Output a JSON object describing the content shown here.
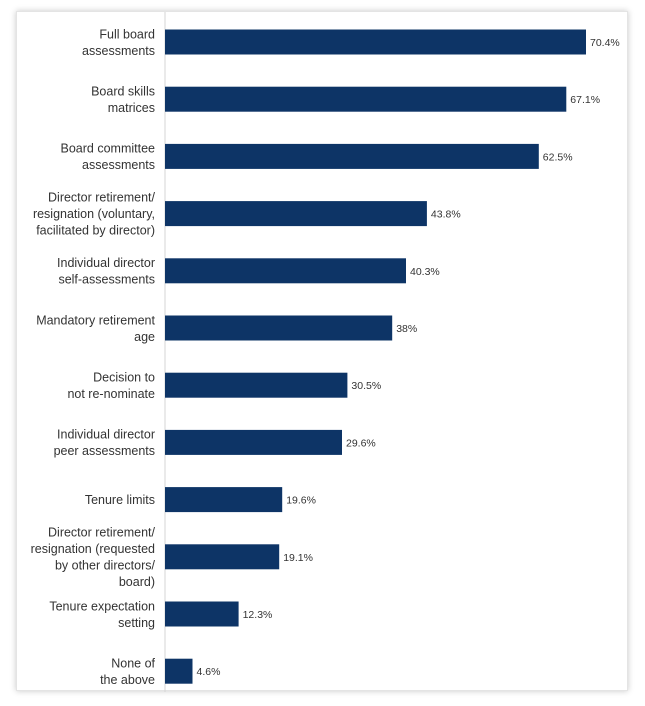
{
  "chart_data": {
    "type": "bar",
    "orientation": "horizontal",
    "title": "",
    "xlabel": "",
    "ylabel": "",
    "xlim": [
      0,
      72
    ],
    "grid": false,
    "legend": "none",
    "bar_color": "#0d3466",
    "categories": [
      [
        "Full board",
        "assessments"
      ],
      [
        "Board skills",
        "matrices"
      ],
      [
        "Board committee",
        "assessments"
      ],
      [
        "Director retirement/",
        "resignation (voluntary,",
        "facilitated by director)"
      ],
      [
        "Individual director",
        "self-assessments"
      ],
      [
        "Mandatory retirement",
        "age"
      ],
      [
        "Decision to",
        "not re-nominate"
      ],
      [
        "Individual director",
        "peer assessments"
      ],
      [
        "Tenure limits"
      ],
      [
        "Director retirement/",
        "resignation (requested",
        "by other directors/",
        "board)"
      ],
      [
        "Tenure expectation",
        "setting"
      ],
      [
        "None of",
        "the above"
      ]
    ],
    "values": [
      70.4,
      67.1,
      62.5,
      43.8,
      40.3,
      38,
      30.5,
      29.6,
      19.6,
      19.1,
      12.3,
      4.6
    ],
    "value_labels": [
      "70.4%",
      "67.1%",
      "62.5%",
      "43.8%",
      "40.3%",
      "38%",
      "30.5%",
      "29.6%",
      "19.6%",
      "19.1%",
      "12.3%",
      "4.6%"
    ]
  }
}
